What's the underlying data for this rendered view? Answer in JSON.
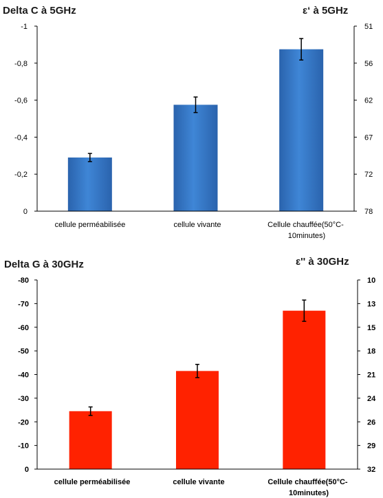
{
  "chart_data": [
    {
      "type": "bar",
      "title": "Delta C à 5GHz",
      "right_axis_title": "ε‘ à 5GHz",
      "categories": [
        "cellule perméabilisée",
        "cellule vivante",
        "Cellule chauffée(50°C-10minutes)"
      ],
      "values": [
        -0.29,
        -0.575,
        -0.875
      ],
      "errors": [
        0.022,
        0.042,
        0.058
      ],
      "ylim": [
        0,
        -1
      ],
      "y_ticks": [
        "-1",
        "-0,8",
        "-0,6",
        "-0,4",
        "-0,2",
        "0"
      ],
      "right_ticks": [
        "51",
        "56",
        "62",
        "67",
        "72",
        "78"
      ],
      "color": "#2e6fc0"
    },
    {
      "type": "bar",
      "title": "Delta G à 30GHz",
      "right_axis_title": "ε'' à 30GHz",
      "categories": [
        "cellule perméabilisée",
        "cellule vivante",
        "Cellule chauffée(50°C-10minutes)"
      ],
      "values": [
        -24.5,
        -41.5,
        -67
      ],
      "errors": [
        1.8,
        2.8,
        4.5
      ],
      "ylim": [
        0,
        -80
      ],
      "y_ticks": [
        "-80",
        "-70",
        "-60",
        "-50",
        "-40",
        "-30",
        "-20",
        "-10",
        "0"
      ],
      "right_ticks": [
        "10",
        "13",
        "15",
        "18",
        "21",
        "24",
        "26",
        "29",
        "32"
      ],
      "color": "#ff2200"
    }
  ]
}
